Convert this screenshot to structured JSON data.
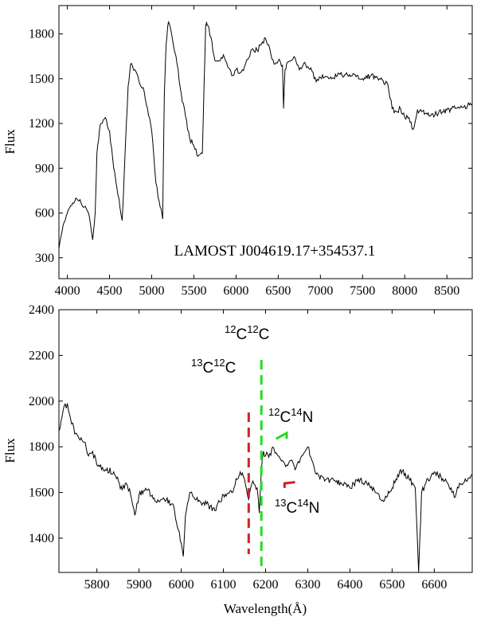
{
  "chart_data": [
    {
      "type": "line",
      "name": "full-spectrum",
      "title": "LAMOST J004619.17+354537.1",
      "xlabel": "",
      "ylabel": "Flux",
      "xlim": [
        3900,
        8800
      ],
      "ylim": [
        160,
        1990
      ],
      "xticks": [
        4000,
        4500,
        5000,
        5500,
        6000,
        6500,
        7000,
        7500,
        8000,
        8500
      ],
      "yticks": [
        300,
        600,
        900,
        1200,
        1500,
        1800
      ],
      "grid": false,
      "series": [
        {
          "x": [
            3900,
            3950,
            4000,
            4050,
            4100,
            4150,
            4200,
            4250,
            4300,
            4330,
            4350,
            4380,
            4400,
            4450,
            4500,
            4550,
            4600,
            4650,
            4700,
            4720,
            4750,
            4800,
            4850,
            4900,
            4950,
            5000,
            5050,
            5100,
            5130,
            5150,
            5170,
            5190,
            5200,
            5250,
            5300,
            5350,
            5400,
            5450,
            5500,
            5550,
            5600,
            5640,
            5650,
            5660,
            5700,
            5750,
            5800,
            5850,
            5900,
            5950,
            6000,
            6050,
            6100,
            6150,
            6200,
            6250,
            6300,
            6350,
            6400,
            6450,
            6500,
            6550,
            6563,
            6580,
            6600,
            6650,
            6700,
            6750,
            6800,
            6850,
            6900,
            6950,
            7000,
            7050,
            7100,
            7200,
            7300,
            7400,
            7500,
            7600,
            7700,
            7800,
            7850,
            7900,
            7950,
            8000,
            8050,
            8100,
            8150,
            8200,
            8300,
            8400,
            8500,
            8600,
            8700,
            8800
          ],
          "values": [
            360,
            520,
            600,
            650,
            700,
            690,
            640,
            600,
            420,
            600,
            1000,
            1150,
            1200,
            1240,
            1150,
            900,
            720,
            550,
            1200,
            1450,
            1600,
            1560,
            1480,
            1440,
            1300,
            1150,
            800,
            640,
            560,
            1400,
            1720,
            1850,
            1880,
            1750,
            1600,
            1400,
            1250,
            1100,
            1050,
            980,
            1000,
            1860,
            1880,
            1860,
            1780,
            1620,
            1620,
            1660,
            1580,
            1520,
            1560,
            1540,
            1580,
            1640,
            1700,
            1690,
            1730,
            1770,
            1700,
            1600,
            1620,
            1590,
            1300,
            1560,
            1600,
            1620,
            1640,
            1560,
            1600,
            1580,
            1550,
            1480,
            1510,
            1510,
            1500,
            1520,
            1530,
            1530,
            1500,
            1520,
            1500,
            1460,
            1300,
            1280,
            1300,
            1240,
            1240,
            1160,
            1290,
            1280,
            1250,
            1270,
            1290,
            1300,
            1310,
            1330
          ]
        }
      ],
      "annotations": [
        {
          "text": "LAMOST J004619.17+354537.1"
        }
      ]
    },
    {
      "type": "line",
      "name": "zoom-spectrum",
      "title": "",
      "xlabel": "Wavelength(Å)",
      "ylabel": "Flux",
      "xlim": [
        5710,
        6690
      ],
      "ylim": [
        1250,
        2400
      ],
      "xticks": [
        5800,
        5900,
        6000,
        6100,
        6200,
        6300,
        6400,
        6500,
        6600
      ],
      "yticks": [
        1400,
        1600,
        1800,
        2000,
        2200,
        2400
      ],
      "grid": false,
      "series": [
        {
          "x": [
            5710,
            5720,
            5730,
            5740,
            5750,
            5760,
            5770,
            5780,
            5790,
            5800,
            5820,
            5840,
            5860,
            5870,
            5880,
            5890,
            5900,
            5920,
            5940,
            5960,
            5980,
            6000,
            6005,
            6010,
            6020,
            6040,
            6060,
            6080,
            6100,
            6120,
            6130,
            6140,
            6150,
            6160,
            6170,
            6180,
            6185,
            6190,
            6195,
            6200,
            6210,
            6220,
            6230,
            6240,
            6250,
            6260,
            6270,
            6280,
            6290,
            6300,
            6310,
            6320,
            6340,
            6360,
            6380,
            6400,
            6420,
            6440,
            6460,
            6480,
            6500,
            6520,
            6540,
            6555,
            6563,
            6570,
            6580,
            6600,
            6620,
            6640,
            6650,
            6660,
            6680,
            6690
          ],
          "values": [
            1870,
            1960,
            1990,
            1900,
            1860,
            1830,
            1820,
            1760,
            1780,
            1720,
            1700,
            1690,
            1610,
            1640,
            1590,
            1500,
            1590,
            1610,
            1560,
            1570,
            1550,
            1380,
            1320,
            1500,
            1600,
            1560,
            1550,
            1520,
            1590,
            1600,
            1660,
            1690,
            1660,
            1570,
            1650,
            1620,
            1510,
            1700,
            1780,
            1760,
            1770,
            1790,
            1760,
            1740,
            1720,
            1740,
            1700,
            1730,
            1770,
            1800,
            1740,
            1680,
            1650,
            1660,
            1640,
            1620,
            1660,
            1640,
            1600,
            1560,
            1620,
            1700,
            1660,
            1620,
            1250,
            1600,
            1640,
            1690,
            1660,
            1620,
            1580,
            1640,
            1660,
            1680
          ]
        }
      ],
      "annotations": [
        {
          "base_left": "12",
          "sym_left": "C",
          "base_right": "12",
          "sym_right": "C"
        },
        {
          "base_left": "13",
          "sym_left": "C",
          "base_right": "12",
          "sym_right": "C"
        },
        {
          "base_left": "12",
          "sym_left": "C",
          "base_right": "14",
          "sym_right": "N"
        },
        {
          "base_left": "13",
          "sym_left": "C",
          "base_right": "14",
          "sym_right": "N"
        }
      ],
      "markers": [
        {
          "type": "dashed-vertical",
          "x": 6190,
          "y_from": 1250,
          "y_to": 2180,
          "color": "#22dd22"
        },
        {
          "type": "dashed-vertical",
          "x": 6160,
          "y_from": 1330,
          "y_to": 1950,
          "color": "#d42020"
        },
        {
          "type": "bandhead",
          "x_from": 6225,
          "x_to": 6250,
          "y_from": 1835,
          "y_to": 1885,
          "tail_y": 1860,
          "color": "#22dd22"
        },
        {
          "type": "bandhead",
          "x_from": 6245,
          "x_to": 6270,
          "y_from": 1665,
          "y_to": 1630,
          "tail_y": 1640,
          "color": "#d42020"
        }
      ]
    }
  ]
}
